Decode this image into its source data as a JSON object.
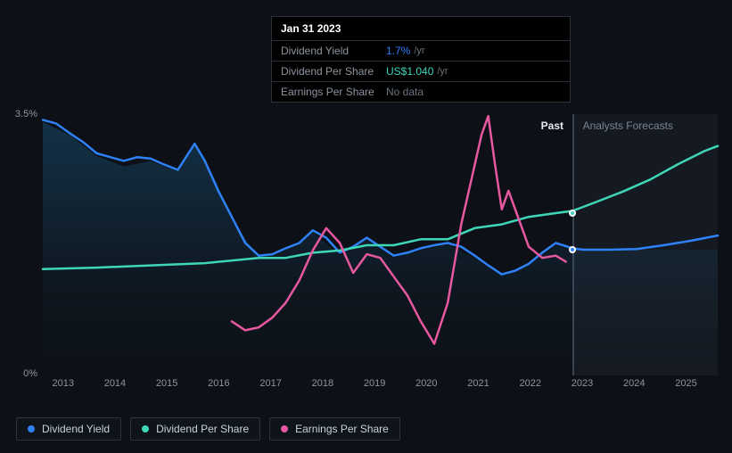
{
  "tooltip": {
    "date": "Jan 31 2023",
    "rows": [
      {
        "label": "Dividend Yield",
        "value": "1.7%",
        "suffix": "/yr",
        "value_color": "#2f81f7"
      },
      {
        "label": "Dividend Per Share",
        "value": "US$1.040",
        "suffix": "/yr",
        "value_color": "#3fd6b8"
      },
      {
        "label": "Earnings Per Share",
        "value": "No data",
        "suffix": "",
        "value_color": "#6a737d"
      }
    ]
  },
  "chart": {
    "type": "line",
    "background_color": "#0d1117",
    "grid_visible": false,
    "past_boundary_pct": 78.5,
    "y_axis": {
      "min": 0,
      "max": 3.5,
      "ticks": [
        {
          "label": "3.5%",
          "value": 3.5
        },
        {
          "label": "0%",
          "value": 0
        }
      ],
      "label_fontsize": 11,
      "label_color": "#8b949e"
    },
    "x_axis": {
      "ticks": [
        "2013",
        "2014",
        "2015",
        "2016",
        "2017",
        "2018",
        "2019",
        "2020",
        "2021",
        "2022",
        "2023",
        "2024",
        "2025"
      ],
      "label_fontsize": 11,
      "label_color": "#8b949e"
    },
    "labels": {
      "past": "Past",
      "forecast": "Analysts Forecasts"
    },
    "series": {
      "dividend_yield": {
        "name": "Dividend Yield",
        "color": "#2f81f7",
        "line_width": 2.5,
        "points": [
          [
            0,
            3.4
          ],
          [
            2,
            3.35
          ],
          [
            4,
            3.22
          ],
          [
            6,
            3.1
          ],
          [
            8,
            2.95
          ],
          [
            10,
            2.9
          ],
          [
            12,
            2.85
          ],
          [
            14,
            2.9
          ],
          [
            16,
            2.88
          ],
          [
            18,
            2.8
          ],
          [
            20,
            2.73
          ],
          [
            22.5,
            3.08
          ],
          [
            24,
            2.85
          ],
          [
            26,
            2.45
          ],
          [
            28,
            2.1
          ],
          [
            30,
            1.75
          ],
          [
            32,
            1.58
          ],
          [
            34,
            1.6
          ],
          [
            36,
            1.68
          ],
          [
            38,
            1.75
          ],
          [
            40,
            1.92
          ],
          [
            42,
            1.82
          ],
          [
            44,
            1.62
          ],
          [
            46,
            1.7
          ],
          [
            48,
            1.82
          ],
          [
            50,
            1.7
          ],
          [
            52,
            1.58
          ],
          [
            54,
            1.62
          ],
          [
            56,
            1.68
          ],
          [
            58,
            1.72
          ],
          [
            60,
            1.75
          ],
          [
            62,
            1.7
          ],
          [
            64,
            1.58
          ],
          [
            66,
            1.45
          ],
          [
            68,
            1.33
          ],
          [
            70,
            1.38
          ],
          [
            72,
            1.47
          ],
          [
            74,
            1.62
          ],
          [
            76,
            1.75
          ],
          [
            78.5,
            1.68
          ],
          [
            80,
            1.66
          ],
          [
            84,
            1.66
          ],
          [
            88,
            1.67
          ],
          [
            92,
            1.72
          ],
          [
            96,
            1.78
          ],
          [
            100,
            1.85
          ]
        ],
        "marker_at": [
          78.5,
          1.68
        ]
      },
      "dividend_per_share": {
        "name": "Dividend Per Share",
        "color": "#3fd6b8",
        "line_width": 2.5,
        "points": [
          [
            0,
            1.4
          ],
          [
            8,
            1.42
          ],
          [
            16,
            1.45
          ],
          [
            24,
            1.48
          ],
          [
            32,
            1.55
          ],
          [
            36,
            1.55
          ],
          [
            40,
            1.62
          ],
          [
            44,
            1.65
          ],
          [
            48,
            1.72
          ],
          [
            52,
            1.72
          ],
          [
            56,
            1.8
          ],
          [
            60,
            1.8
          ],
          [
            64,
            1.95
          ],
          [
            68,
            2.0
          ],
          [
            72,
            2.1
          ],
          [
            76,
            2.15
          ],
          [
            78.5,
            2.18
          ],
          [
            82,
            2.3
          ],
          [
            86,
            2.44
          ],
          [
            90,
            2.6
          ],
          [
            94,
            2.8
          ],
          [
            98,
            2.98
          ],
          [
            100,
            3.05
          ]
        ],
        "marker_at": [
          78.5,
          2.18
        ]
      },
      "earnings_per_share": {
        "name": "Earnings Per Share",
        "color": "#e858a0",
        "line_width": 2.5,
        "points": [
          [
            28,
            0.7
          ],
          [
            30,
            0.58
          ],
          [
            32,
            0.62
          ],
          [
            34,
            0.75
          ],
          [
            36,
            0.95
          ],
          [
            38,
            1.25
          ],
          [
            40,
            1.65
          ],
          [
            42,
            1.95
          ],
          [
            44,
            1.75
          ],
          [
            46,
            1.35
          ],
          [
            48,
            1.6
          ],
          [
            50,
            1.55
          ],
          [
            52,
            1.3
          ],
          [
            54,
            1.05
          ],
          [
            56,
            0.7
          ],
          [
            58,
            0.4
          ],
          [
            60,
            0.95
          ],
          [
            62,
            2.0
          ],
          [
            64,
            2.8
          ],
          [
            65,
            3.2
          ],
          [
            66,
            3.45
          ],
          [
            67,
            2.8
          ],
          [
            68,
            2.2
          ],
          [
            69,
            2.45
          ],
          [
            70,
            2.2
          ],
          [
            72,
            1.7
          ],
          [
            74,
            1.55
          ],
          [
            76,
            1.58
          ],
          [
            77.5,
            1.5
          ]
        ]
      }
    },
    "colors": {
      "tooltip_bg": "#000000",
      "tooltip_border": "#2a2f38",
      "legend_border": "#2c333d",
      "text_primary": "#c9d1d9",
      "text_muted": "#8b949e"
    }
  },
  "legend": [
    {
      "label": "Dividend Yield",
      "color": "#2f81f7"
    },
    {
      "label": "Dividend Per Share",
      "color": "#3fd6b8"
    },
    {
      "label": "Earnings Per Share",
      "color": "#e858a0"
    }
  ]
}
